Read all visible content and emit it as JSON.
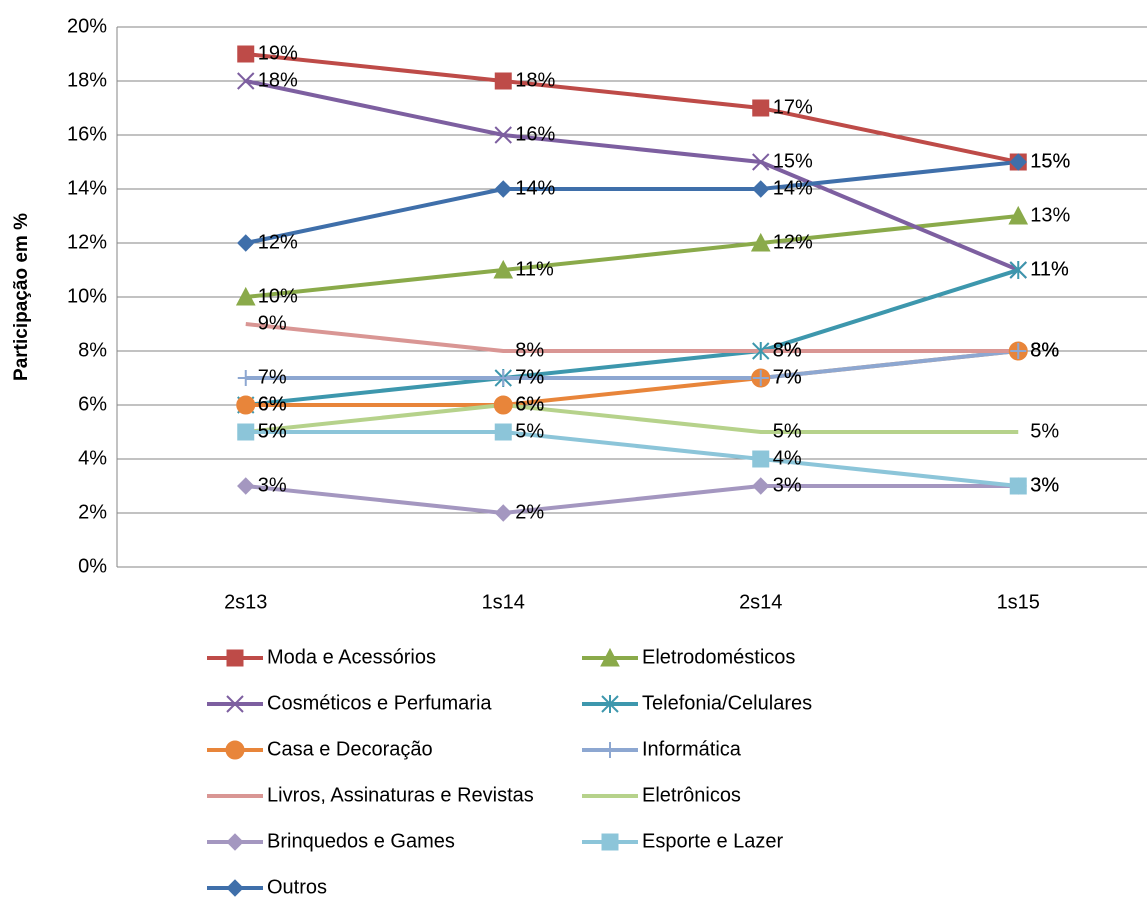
{
  "chart_data": {
    "type": "line",
    "y_label": "Participação em %",
    "categories": [
      "2s13",
      "1s14",
      "2s14",
      "1s15"
    ],
    "ylim": [
      0,
      20
    ],
    "yticks": [
      {
        "value": 0,
        "label": "0%"
      },
      {
        "value": 2,
        "label": "2%"
      },
      {
        "value": 4,
        "label": "4%"
      },
      {
        "value": 6,
        "label": "6%"
      },
      {
        "value": 8,
        "label": "8%"
      },
      {
        "value": 10,
        "label": "10%"
      },
      {
        "value": 12,
        "label": "12%"
      },
      {
        "value": 14,
        "label": "14%"
      },
      {
        "value": 16,
        "label": "16%"
      },
      {
        "value": 18,
        "label": "18%"
      },
      {
        "value": 20,
        "label": "20%"
      }
    ],
    "grid": true,
    "legend": "bottom",
    "series": [
      {
        "name": "Moda e Acessórios",
        "color": "#be4b48",
        "marker": "square",
        "values": [
          19,
          18,
          17,
          15
        ],
        "value_labels": [
          "19%",
          "18%",
          "17%",
          "15%"
        ]
      },
      {
        "name": "Eletrodomésticos",
        "color": "#8aaa4a",
        "marker": "triangle",
        "values": [
          10,
          11,
          12,
          13
        ],
        "value_labels": [
          "10%",
          "11%",
          "12%",
          "13%"
        ]
      },
      {
        "name": "Cosméticos e Perfumaria",
        "color": "#7d5fa0",
        "marker": "x",
        "values": [
          18,
          16,
          15,
          11
        ],
        "value_labels": [
          "18%",
          "16%",
          "15%",
          "11%"
        ]
      },
      {
        "name": "Telefonia/Celulares",
        "color": "#3d97ad",
        "marker": "star",
        "values": [
          6,
          7,
          8,
          11
        ],
        "value_labels": [
          "6%",
          "7%",
          "8%",
          "11%"
        ]
      },
      {
        "name": "Casa e Decoração",
        "color": "#e8853a",
        "marker": "circle",
        "values": [
          6,
          6,
          7,
          8
        ],
        "value_labels": [
          "6%",
          "6%",
          "7%",
          "8%"
        ]
      },
      {
        "name": "Informática",
        "color": "#8da7d1",
        "marker": "plus",
        "values": [
          7,
          7,
          7,
          8
        ],
        "value_labels": [
          "7%",
          "7%",
          "7%",
          "8%"
        ]
      },
      {
        "name": "Livros, Assinaturas e Revistas",
        "color": "#d99694",
        "marker": "none",
        "values": [
          9,
          8,
          8,
          8
        ],
        "value_labels": [
          "9%",
          "8%",
          "8%",
          "8%"
        ]
      },
      {
        "name": "Eletrônicos",
        "color": "#b6d28b",
        "marker": "none",
        "values": [
          5,
          6,
          5,
          5
        ],
        "value_labels": [
          "5%",
          "6%",
          "5%",
          "5%"
        ]
      },
      {
        "name": "Brinquedos e Games",
        "color": "#a497c0",
        "marker": "diamond",
        "values": [
          3,
          2,
          3,
          3
        ],
        "value_labels": [
          "3%",
          "2%",
          "3%",
          "3%"
        ]
      },
      {
        "name": "Esporte e Lazer",
        "color": "#8cc5d9",
        "marker": "square",
        "values": [
          5,
          5,
          4,
          3
        ],
        "value_labels": [
          "5%",
          "5%",
          "4%",
          "3%"
        ]
      },
      {
        "name": "Outros",
        "color": "#3f6faa",
        "marker": "diamond",
        "values": [
          12,
          14,
          14,
          15
        ],
        "value_labels": [
          "12%",
          "14%",
          "14%",
          "15%"
        ]
      }
    ]
  }
}
